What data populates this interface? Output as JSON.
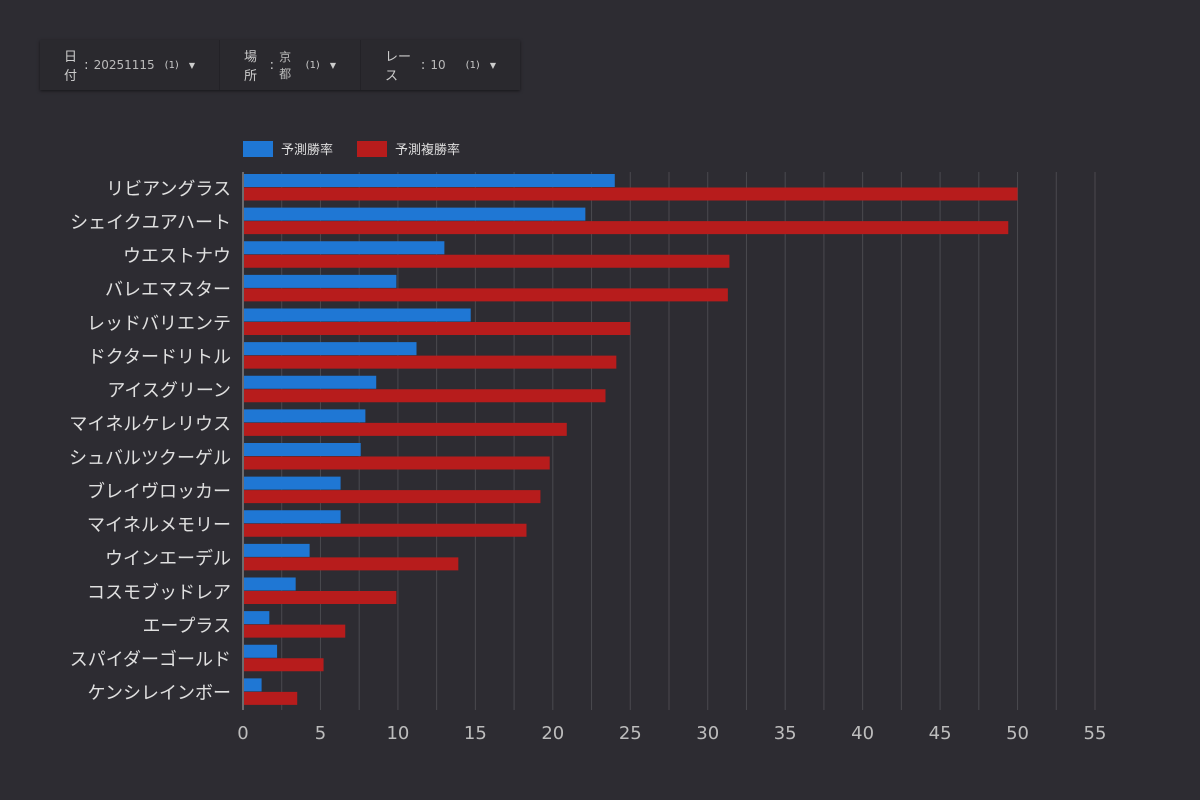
{
  "filters": [
    {
      "label": "日付",
      "value": "20251115",
      "count": "(1)"
    },
    {
      "label": "場所",
      "value": "京都",
      "count": "(1)"
    },
    {
      "label": "レース",
      "value": "10",
      "count": "(1)"
    }
  ],
  "chart_data": {
    "type": "bar",
    "orientation": "horizontal",
    "categories": [
      "リビアングラス",
      "シェイクユアハート",
      "ウエストナウ",
      "バレエマスター",
      "レッドバリエンテ",
      "ドクタードリトル",
      "アイスグリーン",
      "マイネルケレリウス",
      "シュバルツクーゲル",
      "ブレイヴロッカー",
      "マイネルメモリー",
      "ウインエーデル",
      "コスモブッドレア",
      "エープラス",
      "スパイダーゴールド",
      "ケンシレインボー"
    ],
    "series": [
      {
        "name": "予測勝率",
        "color": "#1f77d4",
        "values": [
          24.0,
          22.1,
          13.0,
          9.9,
          14.7,
          11.2,
          8.6,
          7.9,
          7.6,
          6.3,
          6.3,
          4.3,
          3.4,
          1.7,
          2.2,
          1.2
        ]
      },
      {
        "name": "予測複勝率",
        "color": "#b71c1c",
        "values": [
          50.0,
          49.4,
          31.4,
          31.3,
          25.0,
          24.1,
          23.4,
          20.9,
          19.8,
          19.2,
          18.3,
          13.9,
          9.9,
          6.6,
          5.2,
          3.5
        ]
      }
    ],
    "xlim": [
      0,
      55
    ],
    "xticks": [
      "0",
      "5",
      "10",
      "15",
      "20",
      "25",
      "30",
      "35",
      "40",
      "45",
      "50",
      "55"
    ],
    "grid": true,
    "legend_position": "top-left"
  }
}
